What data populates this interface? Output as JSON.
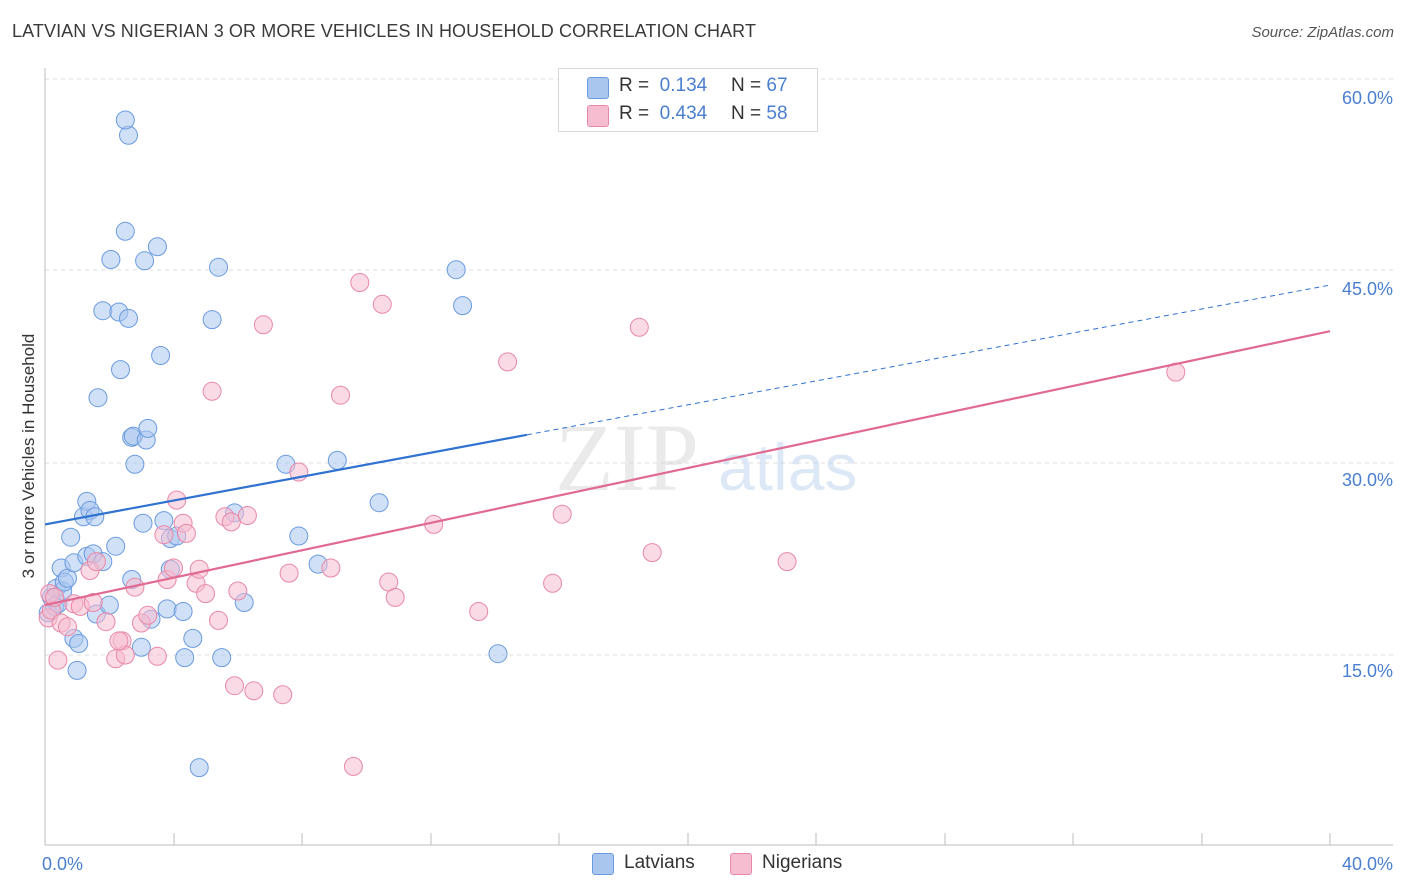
{
  "header": {
    "title": "LATVIAN VS NIGERIAN 3 OR MORE VEHICLES IN HOUSEHOLD CORRELATION CHART",
    "source": "Source: ZipAtlas.com"
  },
  "legend_top": {
    "rows": [
      {
        "r_label": "R =",
        "r_value": "0.134",
        "n_label": "N =",
        "n_value": "67"
      },
      {
        "r_label": "R =",
        "r_value": "0.434",
        "n_label": "N =",
        "n_value": "58"
      }
    ]
  },
  "legend_bottom": {
    "items": [
      "Latvians",
      "Nigerians"
    ]
  },
  "watermark": {
    "zip": "ZIP",
    "atlas": "atlas"
  },
  "colors": {
    "latvian_fill": "#a9c6ee",
    "latvian_stroke": "#6b9be0",
    "latvian_line": "#2f72d0",
    "nigerian_fill": "#f6bcd0",
    "nigerian_stroke": "#e888a8",
    "nigerian_line": "#e06a92",
    "tick_label": "#4a7fd0"
  },
  "chart_data": {
    "type": "scatter",
    "title": "LATVIAN VS NIGERIAN 3 OR MORE VEHICLES IN HOUSEHOLD CORRELATION CHART",
    "xlabel": "",
    "ylabel": "3 or more Vehicles in Household",
    "xlim": [
      0,
      40
    ],
    "ylim": [
      0,
      62
    ],
    "x_tick_labels": [
      "0.0%",
      "40.0%"
    ],
    "y_ticks": [
      15,
      30,
      45,
      60
    ],
    "y_tick_labels": [
      "15.0%",
      "30.0%",
      "45.0%",
      "60.0%"
    ],
    "grid": true,
    "series": [
      {
        "name": "Latvians",
        "r": 0.134,
        "n": 67,
        "trend": {
          "x0": 0,
          "y0": 25.2,
          "x1": 15.0,
          "y1": 32.2,
          "dash_to_x": 40,
          "dash_to_y": 43.9
        },
        "points": [
          [
            0.1,
            18.3
          ],
          [
            0.2,
            19.5
          ],
          [
            0.3,
            18.8
          ],
          [
            0.35,
            20.2
          ],
          [
            0.4,
            19.0
          ],
          [
            0.5,
            21.8
          ],
          [
            0.55,
            20.0
          ],
          [
            0.6,
            20.7
          ],
          [
            0.7,
            21.0
          ],
          [
            0.8,
            24.2
          ],
          [
            0.9,
            22.2
          ],
          [
            0.9,
            16.3
          ],
          [
            1.0,
            13.8
          ],
          [
            1.05,
            15.9
          ],
          [
            1.2,
            25.8
          ],
          [
            1.3,
            22.7
          ],
          [
            1.3,
            27.0
          ],
          [
            1.4,
            26.3
          ],
          [
            1.5,
            22.9
          ],
          [
            1.55,
            25.8
          ],
          [
            1.6,
            18.2
          ],
          [
            1.65,
            35.1
          ],
          [
            1.8,
            22.3
          ],
          [
            1.8,
            41.9
          ],
          [
            2.0,
            18.9
          ],
          [
            2.05,
            45.9
          ],
          [
            2.2,
            23.5
          ],
          [
            2.3,
            41.8
          ],
          [
            2.35,
            37.3
          ],
          [
            2.5,
            48.1
          ],
          [
            2.6,
            55.6
          ],
          [
            2.7,
            32.0
          ],
          [
            2.7,
            20.9
          ],
          [
            2.75,
            32.1
          ],
          [
            2.8,
            29.9
          ],
          [
            3.0,
            15.6
          ],
          [
            3.05,
            25.3
          ],
          [
            3.1,
            45.8
          ],
          [
            3.15,
            31.8
          ],
          [
            3.2,
            32.7
          ],
          [
            3.3,
            17.8
          ],
          [
            3.5,
            46.9
          ],
          [
            3.6,
            38.4
          ],
          [
            3.7,
            25.5
          ],
          [
            3.8,
            18.6
          ],
          [
            3.9,
            21.7
          ],
          [
            3.9,
            24.1
          ],
          [
            4.1,
            24.3
          ],
          [
            4.3,
            18.4
          ],
          [
            4.35,
            14.8
          ],
          [
            4.6,
            16.3
          ],
          [
            4.8,
            6.2
          ],
          [
            5.2,
            41.2
          ],
          [
            5.4,
            45.3
          ],
          [
            5.5,
            14.8
          ],
          [
            5.9,
            26.1
          ],
          [
            6.2,
            19.1
          ],
          [
            7.5,
            29.9
          ],
          [
            7.9,
            24.3
          ],
          [
            8.5,
            22.1
          ],
          [
            9.1,
            30.2
          ],
          [
            10.4,
            26.9
          ],
          [
            12.8,
            45.1
          ],
          [
            13.0,
            42.3
          ],
          [
            14.1,
            15.1
          ],
          [
            2.5,
            56.8
          ],
          [
            2.6,
            41.3
          ]
        ]
      },
      {
        "name": "Nigerians",
        "r": 0.434,
        "n": 58,
        "trend": {
          "x0": 0,
          "y0": 18.9,
          "x1": 40,
          "y1": 40.3
        },
        "points": [
          [
            0.1,
            17.9
          ],
          [
            0.15,
            19.8
          ],
          [
            0.2,
            18.5
          ],
          [
            0.3,
            19.5
          ],
          [
            0.4,
            14.6
          ],
          [
            0.5,
            17.5
          ],
          [
            0.7,
            17.2
          ],
          [
            0.9,
            19.0
          ],
          [
            1.1,
            18.8
          ],
          [
            1.4,
            21.6
          ],
          [
            1.5,
            19.1
          ],
          [
            1.6,
            22.3
          ],
          [
            1.9,
            17.6
          ],
          [
            2.2,
            14.7
          ],
          [
            2.4,
            16.1
          ],
          [
            2.5,
            15.0
          ],
          [
            2.8,
            20.3
          ],
          [
            3.0,
            17.5
          ],
          [
            3.2,
            18.1
          ],
          [
            3.5,
            14.9
          ],
          [
            3.7,
            24.4
          ],
          [
            3.8,
            20.9
          ],
          [
            4.0,
            21.8
          ],
          [
            4.1,
            27.1
          ],
          [
            4.3,
            25.3
          ],
          [
            4.4,
            24.5
          ],
          [
            4.7,
            20.6
          ],
          [
            4.8,
            21.7
          ],
          [
            5.0,
            19.8
          ],
          [
            5.2,
            35.6
          ],
          [
            5.4,
            17.7
          ],
          [
            5.6,
            25.8
          ],
          [
            5.8,
            25.4
          ],
          [
            5.9,
            12.6
          ],
          [
            6.0,
            20.0
          ],
          [
            6.3,
            25.9
          ],
          [
            6.5,
            12.2
          ],
          [
            6.8,
            40.8
          ],
          [
            7.4,
            11.9
          ],
          [
            7.6,
            21.4
          ],
          [
            7.9,
            29.3
          ],
          [
            8.9,
            21.8
          ],
          [
            9.2,
            35.3
          ],
          [
            9.6,
            6.3
          ],
          [
            9.8,
            44.1
          ],
          [
            10.5,
            42.4
          ],
          [
            10.7,
            20.7
          ],
          [
            10.9,
            19.5
          ],
          [
            12.1,
            25.2
          ],
          [
            13.5,
            18.4
          ],
          [
            14.4,
            37.9
          ],
          [
            15.8,
            20.6
          ],
          [
            16.1,
            26.0
          ],
          [
            18.5,
            40.6
          ],
          [
            18.9,
            23.0
          ],
          [
            23.1,
            22.3
          ],
          [
            35.2,
            37.1
          ],
          [
            2.3,
            16.1
          ]
        ]
      }
    ]
  }
}
